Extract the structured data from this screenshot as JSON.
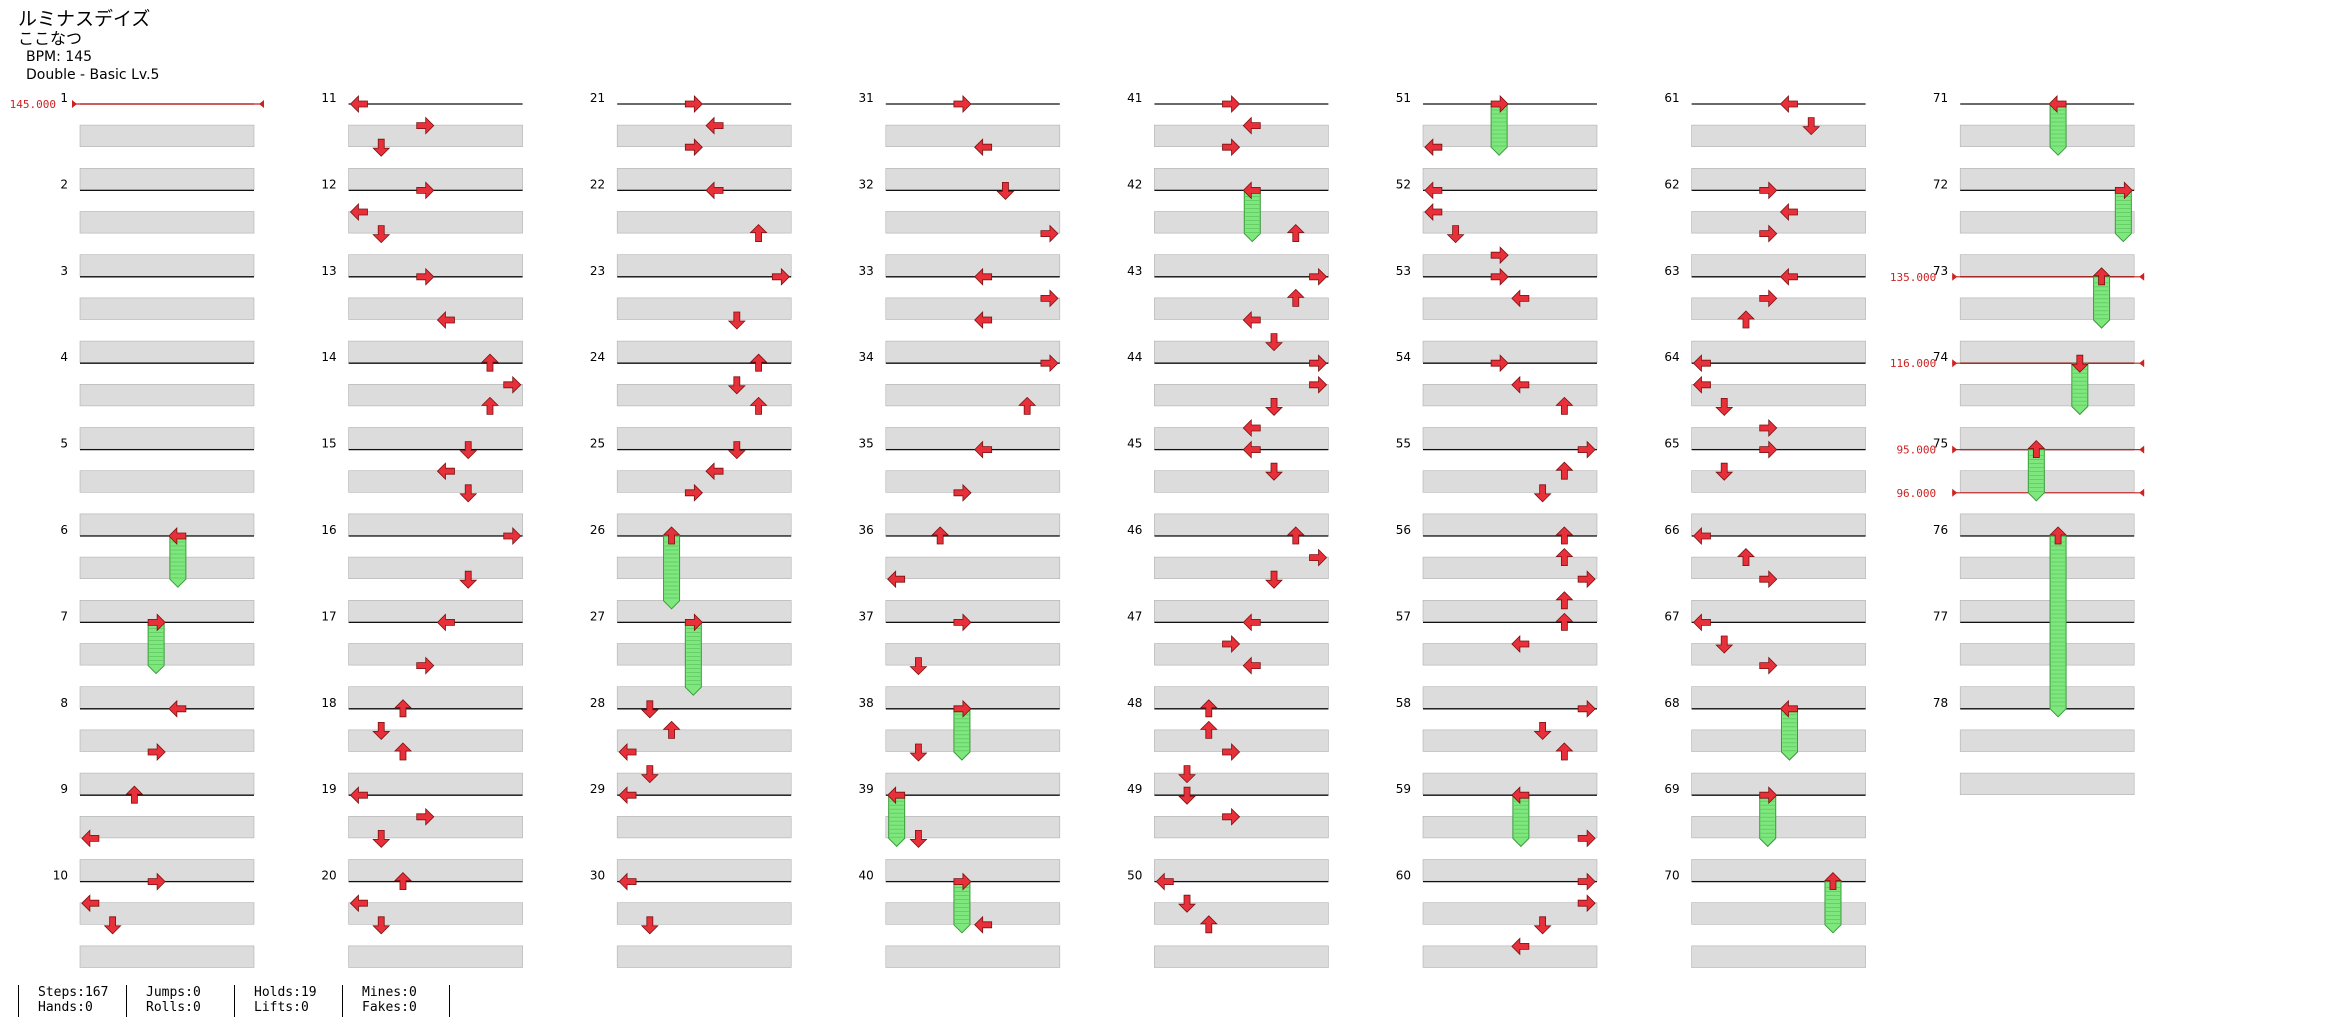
{
  "header": {
    "title": "ルミナスデイズ",
    "artist": "ここなつ",
    "bpm_label": "BPM: 145",
    "chart_label": "Double - Basic  Lv.5"
  },
  "colors": {
    "arrow": "#e8303a",
    "hold": "#7ee87e",
    "lane": "#dcdcdc",
    "bpm_marker": "#cc2222"
  },
  "measures": {
    "count": 78,
    "labels": [
      "1",
      "2",
      "3",
      "4",
      "5",
      "6",
      "7",
      "8",
      "9",
      "10",
      "11",
      "12",
      "13",
      "14",
      "15",
      "16",
      "17",
      "18",
      "19",
      "20",
      "21",
      "22",
      "23",
      "24",
      "25",
      "26",
      "27",
      "28",
      "29",
      "30",
      "31",
      "32",
      "33",
      "34",
      "35",
      "36",
      "37",
      "38",
      "39",
      "40",
      "41",
      "42",
      "43",
      "44",
      "45",
      "46",
      "47",
      "48",
      "49",
      "50",
      "51",
      "52",
      "53",
      "54",
      "55",
      "56",
      "57",
      "58",
      "59",
      "60",
      "61",
      "62",
      "63",
      "64",
      "65",
      "66",
      "67",
      "68",
      "69",
      "70",
      "71",
      "72",
      "73",
      "74",
      "75",
      "76",
      "77",
      "78"
    ]
  },
  "bpm_changes": [
    {
      "label": "145.000",
      "measure": 1,
      "beat": 0
    },
    {
      "label": "135.000",
      "measure": 73,
      "beat": 0
    },
    {
      "label": "116.000",
      "measure": 74,
      "beat": 0
    },
    {
      "label": "95.000",
      "measure": 75,
      "beat": 0
    },
    {
      "label": "96.000",
      "measure": 75,
      "beat": 2
    }
  ],
  "notes": [
    {
      "m": 6,
      "b": 0,
      "d": "L",
      "lane": 4,
      "hold": 2
    },
    {
      "m": 7,
      "b": 0,
      "d": "R",
      "lane": 3,
      "hold": 2
    },
    {
      "m": 8,
      "b": 0,
      "d": "L",
      "lane": 4
    },
    {
      "m": 8,
      "b": 2,
      "d": "R",
      "lane": 3
    },
    {
      "m": 9,
      "b": 0,
      "d": "U",
      "lane": 2
    },
    {
      "m": 9,
      "b": 2,
      "d": "L",
      "lane": 0
    },
    {
      "m": 10,
      "b": 0,
      "d": "R",
      "lane": 3
    },
    {
      "m": 10,
      "b": 1,
      "d": "L",
      "lane": 0
    },
    {
      "m": 10,
      "b": 2,
      "d": "D",
      "lane": 1
    },
    {
      "m": 11,
      "b": 0,
      "d": "L",
      "lane": 0
    },
    {
      "m": 11,
      "b": 1,
      "d": "R",
      "lane": 3
    },
    {
      "m": 11,
      "b": 2,
      "d": "D",
      "lane": 1
    },
    {
      "m": 12,
      "b": 0,
      "d": "R",
      "lane": 3
    },
    {
      "m": 12,
      "b": 1,
      "d": "L",
      "lane": 0
    },
    {
      "m": 12,
      "b": 2,
      "d": "D",
      "lane": 1
    },
    {
      "m": 13,
      "b": 0,
      "d": "R",
      "lane": 3
    },
    {
      "m": 13,
      "b": 2,
      "d": "L",
      "lane": 4
    },
    {
      "m": 14,
      "b": 0,
      "d": "U",
      "lane": 6
    },
    {
      "m": 14,
      "b": 1,
      "d": "R",
      "lane": 7
    },
    {
      "m": 14,
      "b": 2,
      "d": "U",
      "lane": 6
    },
    {
      "m": 15,
      "b": 0,
      "d": "D",
      "lane": 5
    },
    {
      "m": 15,
      "b": 1,
      "d": "L",
      "lane": 4
    },
    {
      "m": 15,
      "b": 2,
      "d": "D",
      "lane": 5
    },
    {
      "m": 16,
      "b": 0,
      "d": "R",
      "lane": 7
    },
    {
      "m": 16,
      "b": 2,
      "d": "D",
      "lane": 5
    },
    {
      "m": 17,
      "b": 0,
      "d": "L",
      "lane": 4
    },
    {
      "m": 17,
      "b": 2,
      "d": "R",
      "lane": 3
    },
    {
      "m": 18,
      "b": 0,
      "d": "U",
      "lane": 2
    },
    {
      "m": 18,
      "b": 1,
      "d": "D",
      "lane": 1
    },
    {
      "m": 18,
      "b": 2,
      "d": "U",
      "lane": 2
    },
    {
      "m": 19,
      "b": 0,
      "d": "L",
      "lane": 0
    },
    {
      "m": 19,
      "b": 1,
      "d": "R",
      "lane": 3
    },
    {
      "m": 19,
      "b": 2,
      "d": "D",
      "lane": 1
    },
    {
      "m": 20,
      "b": 0,
      "d": "U",
      "lane": 2
    },
    {
      "m": 20,
      "b": 1,
      "d": "L",
      "lane": 0
    },
    {
      "m": 20,
      "b": 2,
      "d": "D",
      "lane": 1
    },
    {
      "m": 21,
      "b": 0,
      "d": "R",
      "lane": 3
    },
    {
      "m": 21,
      "b": 1,
      "d": "L",
      "lane": 4
    },
    {
      "m": 21,
      "b": 2,
      "d": "R",
      "lane": 3
    },
    {
      "m": 22,
      "b": 0,
      "d": "L",
      "lane": 4
    },
    {
      "m": 22,
      "b": 2,
      "d": "U",
      "lane": 6
    },
    {
      "m": 23,
      "b": 0,
      "d": "R",
      "lane": 7
    },
    {
      "m": 23,
      "b": 2,
      "d": "D",
      "lane": 5
    },
    {
      "m": 24,
      "b": 0,
      "d": "U",
      "lane": 6
    },
    {
      "m": 24,
      "b": 1,
      "d": "D",
      "lane": 5
    },
    {
      "m": 24,
      "b": 2,
      "d": "U",
      "lane": 6
    },
    {
      "m": 25,
      "b": 0,
      "d": "D",
      "lane": 5
    },
    {
      "m": 25,
      "b": 1,
      "d": "L",
      "lane": 4
    },
    {
      "m": 25,
      "b": 2,
      "d": "R",
      "lane": 3
    },
    {
      "m": 26,
      "b": 0,
      "d": "U",
      "lane": 2,
      "hold": 3
    },
    {
      "m": 27,
      "b": 0,
      "d": "R",
      "lane": 3,
      "hold": 3
    },
    {
      "m": 28,
      "b": 0,
      "d": "D",
      "lane": 1
    },
    {
      "m": 28,
      "b": 1,
      "d": "U",
      "lane": 2
    },
    {
      "m": 28,
      "b": 2,
      "d": "L",
      "lane": 0
    },
    {
      "m": 28,
      "b": 3,
      "d": "D",
      "lane": 1
    },
    {
      "m": 29,
      "b": 0,
      "d": "L",
      "lane": 0
    },
    {
      "m": 30,
      "b": 0,
      "d": "L",
      "lane": 0
    },
    {
      "m": 30,
      "b": 2,
      "d": "D",
      "lane": 1
    },
    {
      "m": 31,
      "b": 0,
      "d": "R",
      "lane": 3
    },
    {
      "m": 31,
      "b": 2,
      "d": "L",
      "lane": 4
    },
    {
      "m": 32,
      "b": 0,
      "d": "D",
      "lane": 5
    },
    {
      "m": 32,
      "b": 2,
      "d": "R",
      "lane": 7
    },
    {
      "m": 33,
      "b": 0,
      "d": "L",
      "lane": 4
    },
    {
      "m": 33,
      "b": 1,
      "d": "R",
      "lane": 7
    },
    {
      "m": 33,
      "b": 2,
      "d": "L",
      "lane": 4
    },
    {
      "m": 34,
      "b": 0,
      "d": "R",
      "lane": 7
    },
    {
      "m": 34,
      "b": 2,
      "d": "U",
      "lane": 6
    },
    {
      "m": 35,
      "b": 0,
      "d": "L",
      "lane": 4
    },
    {
      "m": 35,
      "b": 2,
      "d": "R",
      "lane": 3
    },
    {
      "m": 36,
      "b": 0,
      "d": "U",
      "lane": 2
    },
    {
      "m": 36,
      "b": 2,
      "d": "L",
      "lane": 0
    },
    {
      "m": 37,
      "b": 0,
      "d": "R",
      "lane": 3
    },
    {
      "m": 37,
      "b": 2,
      "d": "D",
      "lane": 1
    },
    {
      "m": 38,
      "b": 0,
      "d": "R",
      "lane": 3,
      "hold": 2
    },
    {
      "m": 38,
      "b": 2,
      "d": "D",
      "lane": 1
    },
    {
      "m": 39,
      "b": 0,
      "d": "L",
      "lane": 0,
      "hold": 2
    },
    {
      "m": 39,
      "b": 2,
      "d": "D",
      "lane": 1
    },
    {
      "m": 40,
      "b": 0,
      "d": "R",
      "lane": 3,
      "hold": 2
    },
    {
      "m": 40,
      "b": 2,
      "d": "L",
      "lane": 4
    },
    {
      "m": 41,
      "b": 0,
      "d": "R",
      "lane": 3
    },
    {
      "m": 41,
      "b": 1,
      "d": "L",
      "lane": 4
    },
    {
      "m": 41,
      "b": 2,
      "d": "R",
      "lane": 3
    },
    {
      "m": 42,
      "b": 0,
      "d": "L",
      "lane": 4,
      "hold": 2
    },
    {
      "m": 42,
      "b": 2,
      "d": "U",
      "lane": 6
    },
    {
      "m": 43,
      "b": 0,
      "d": "R",
      "lane": 7
    },
    {
      "m": 43,
      "b": 1,
      "d": "U",
      "lane": 6
    },
    {
      "m": 43,
      "b": 2,
      "d": "L",
      "lane": 4
    },
    {
      "m": 43,
      "b": 3,
      "d": "D",
      "lane": 5
    },
    {
      "m": 44,
      "b": 0,
      "d": "R",
      "lane": 7
    },
    {
      "m": 44,
      "b": 1,
      "d": "R",
      "lane": 7
    },
    {
      "m": 44,
      "b": 2,
      "d": "D",
      "lane": 5
    },
    {
      "m": 44,
      "b": 3,
      "d": "L",
      "lane": 4
    },
    {
      "m": 45,
      "b": 0,
      "d": "L",
      "lane": 4
    },
    {
      "m": 45,
      "b": 1,
      "d": "D",
      "lane": 5
    },
    {
      "m": 46,
      "b": 0,
      "d": "U",
      "lane": 6
    },
    {
      "m": 46,
      "b": 1,
      "d": "R",
      "lane": 7
    },
    {
      "m": 46,
      "b": 2,
      "d": "D",
      "lane": 5
    },
    {
      "m": 47,
      "b": 0,
      "d": "L",
      "lane": 4
    },
    {
      "m": 47,
      "b": 1,
      "d": "R",
      "lane": 3
    },
    {
      "m": 47,
      "b": 2,
      "d": "L",
      "lane": 4
    },
    {
      "m": 48,
      "b": 0,
      "d": "U",
      "lane": 2
    },
    {
      "m": 48,
      "b": 1,
      "d": "U",
      "lane": 2
    },
    {
      "m": 48,
      "b": 2,
      "d": "R",
      "lane": 3
    },
    {
      "m": 48,
      "b": 3,
      "d": "D",
      "lane": 1
    },
    {
      "m": 49,
      "b": 0,
      "d": "D",
      "lane": 1
    },
    {
      "m": 49,
      "b": 1,
      "d": "R",
      "lane": 3
    },
    {
      "m": 50,
      "b": 0,
      "d": "L",
      "lane": 0
    },
    {
      "m": 50,
      "b": 1,
      "d": "D",
      "lane": 1
    },
    {
      "m": 50,
      "b": 2,
      "d": "U",
      "lane": 2
    },
    {
      "m": 51,
      "b": 0,
      "d": "R",
      "lane": 3,
      "hold": 2
    },
    {
      "m": 51,
      "b": 2,
      "d": "L",
      "lane": 0
    },
    {
      "m": 52,
      "b": 0,
      "d": "L",
      "lane": 0
    },
    {
      "m": 52,
      "b": 1,
      "d": "L",
      "lane": 0
    },
    {
      "m": 52,
      "b": 2,
      "d": "D",
      "lane": 1
    },
    {
      "m": 52,
      "b": 3,
      "d": "R",
      "lane": 3
    },
    {
      "m": 53,
      "b": 0,
      "d": "R",
      "lane": 3
    },
    {
      "m": 53,
      "b": 1,
      "d": "L",
      "lane": 4
    },
    {
      "m": 54,
      "b": 0,
      "d": "R",
      "lane": 3
    },
    {
      "m": 54,
      "b": 1,
      "d": "L",
      "lane": 4
    },
    {
      "m": 54,
      "b": 2,
      "d": "U",
      "lane": 6
    },
    {
      "m": 55,
      "b": 0,
      "d": "R",
      "lane": 7
    },
    {
      "m": 55,
      "b": 1,
      "d": "U",
      "lane": 6
    },
    {
      "m": 55,
      "b": 2,
      "d": "D",
      "lane": 5
    },
    {
      "m": 56,
      "b": 0,
      "d": "U",
      "lane": 6
    },
    {
      "m": 56,
      "b": 1,
      "d": "U",
      "lane": 6
    },
    {
      "m": 56,
      "b": 2,
      "d": "R",
      "lane": 7
    },
    {
      "m": 56,
      "b": 3,
      "d": "U",
      "lane": 6
    },
    {
      "m": 57,
      "b": 0,
      "d": "U",
      "lane": 6
    },
    {
      "m": 57,
      "b": 1,
      "d": "L",
      "lane": 4
    },
    {
      "m": 58,
      "b": 0,
      "d": "R",
      "lane": 7
    },
    {
      "m": 58,
      "b": 1,
      "d": "D",
      "lane": 5
    },
    {
      "m": 58,
      "b": 2,
      "d": "U",
      "lane": 6
    },
    {
      "m": 59,
      "b": 0,
      "d": "L",
      "lane": 4,
      "hold": 2
    },
    {
      "m": 59,
      "b": 2,
      "d": "R",
      "lane": 7
    },
    {
      "m": 60,
      "b": 0,
      "d": "R",
      "lane": 7
    },
    {
      "m": 60,
      "b": 1,
      "d": "R",
      "lane": 7
    },
    {
      "m": 60,
      "b": 2,
      "d": "D",
      "lane": 5
    },
    {
      "m": 60,
      "b": 3,
      "d": "L",
      "lane": 4
    },
    {
      "m": 61,
      "b": 0,
      "d": "L",
      "lane": 4
    },
    {
      "m": 61,
      "b": 1,
      "d": "D",
      "lane": 5
    },
    {
      "m": 62,
      "b": 0,
      "d": "R",
      "lane": 3
    },
    {
      "m": 62,
      "b": 1,
      "d": "L",
      "lane": 4
    },
    {
      "m": 62,
      "b": 2,
      "d": "R",
      "lane": 3
    },
    {
      "m": 63,
      "b": 0,
      "d": "L",
      "lane": 4
    },
    {
      "m": 63,
      "b": 1,
      "d": "R",
      "lane": 3
    },
    {
      "m": 63,
      "b": 2,
      "d": "U",
      "lane": 2
    },
    {
      "m": 64,
      "b": 0,
      "d": "L",
      "lane": 0
    },
    {
      "m": 64,
      "b": 1,
      "d": "L",
      "lane": 0
    },
    {
      "m": 64,
      "b": 2,
      "d": "D",
      "lane": 1
    },
    {
      "m": 64,
      "b": 3,
      "d": "R",
      "lane": 3
    },
    {
      "m": 65,
      "b": 0,
      "d": "R",
      "lane": 3
    },
    {
      "m": 65,
      "b": 1,
      "d": "D",
      "lane": 1
    },
    {
      "m": 66,
      "b": 0,
      "d": "L",
      "lane": 0
    },
    {
      "m": 66,
      "b": 1,
      "d": "U",
      "lane": 2
    },
    {
      "m": 66,
      "b": 2,
      "d": "R",
      "lane": 3
    },
    {
      "m": 67,
      "b": 0,
      "d": "L",
      "lane": 0
    },
    {
      "m": 67,
      "b": 1,
      "d": "D",
      "lane": 1
    },
    {
      "m": 67,
      "b": 2,
      "d": "R",
      "lane": 3
    },
    {
      "m": 68,
      "b": 0,
      "d": "L",
      "lane": 4,
      "hold": 2
    },
    {
      "m": 69,
      "b": 0,
      "d": "R",
      "lane": 3,
      "hold": 2
    },
    {
      "m": 70,
      "b": 0,
      "d": "U",
      "lane": 6,
      "hold": 2
    },
    {
      "m": 71,
      "b": 0,
      "d": "L",
      "lane": 4,
      "hold": 2
    },
    {
      "m": 72,
      "b": 0,
      "d": "R",
      "lane": 7,
      "hold": 2
    },
    {
      "m": 73,
      "b": 0,
      "d": "U",
      "lane": 6,
      "hold": 2
    },
    {
      "m": 74,
      "b": 0,
      "d": "D",
      "lane": 5,
      "hold": 2
    },
    {
      "m": 75,
      "b": 0,
      "d": "U",
      "lane": 3,
      "hold": 2
    },
    {
      "m": 76,
      "b": 0,
      "d": "U",
      "lane": 4,
      "hold": 8
    }
  ],
  "stats": [
    {
      "line1": "Steps:167",
      "line2": "Hands:0"
    },
    {
      "line1": "Jumps:0",
      "line2": "Rolls:0"
    },
    {
      "line1": "Holds:19",
      "line2": "Lifts:0"
    },
    {
      "line1": "Mines:0",
      "line2": "Fakes:0"
    }
  ]
}
